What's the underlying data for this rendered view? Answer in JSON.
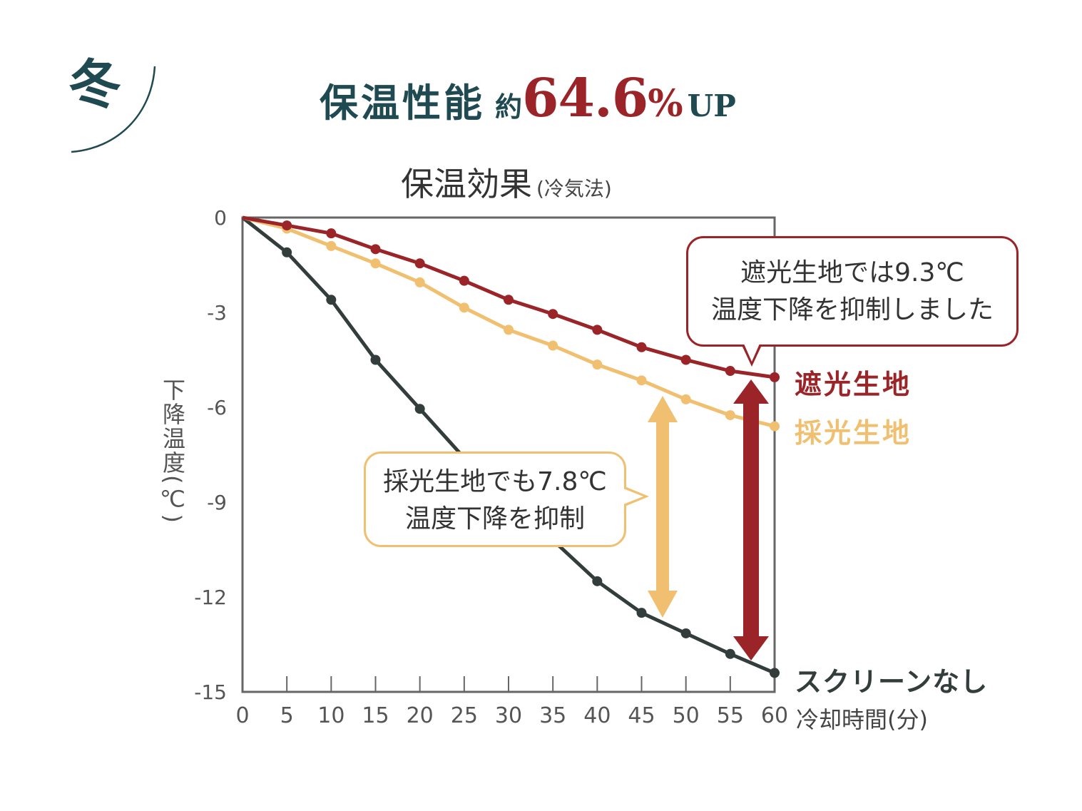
{
  "header": {
    "season": "冬",
    "headline_main": "保温性能",
    "headline_approx": "約",
    "headline_value": "64.6",
    "headline_percent": "%",
    "headline_up": "UP"
  },
  "colors": {
    "dark_teal": "#1f4a52",
    "red": "#9b2428",
    "yellow": "#f0c070",
    "black_series": "#333d3b",
    "axis": "#666666"
  },
  "chart_data": {
    "type": "line",
    "title": "保温効果",
    "subtitle": "(冷気法)",
    "xlabel": "冷却時間(分)",
    "ylabel": "下降温度(℃)",
    "xlim": [
      0,
      60
    ],
    "ylim": [
      -15,
      0
    ],
    "x_ticks": [
      0,
      5,
      10,
      15,
      20,
      25,
      30,
      35,
      40,
      45,
      50,
      55,
      60
    ],
    "y_ticks": [
      0,
      -3,
      -6,
      -9,
      -12,
      -15
    ],
    "x": [
      0,
      5,
      10,
      15,
      20,
      25,
      30,
      35,
      40,
      45,
      50,
      55,
      60
    ],
    "series": [
      {
        "name": "遮光生地",
        "color": "#9b2428",
        "values": [
          0,
          -0.25,
          -0.5,
          -1.0,
          -1.45,
          -2.0,
          -2.6,
          -3.05,
          -3.55,
          -4.1,
          -4.5,
          -4.85,
          -5.05
        ]
      },
      {
        "name": "採光生地",
        "color": "#f0c070",
        "values": [
          0,
          -0.35,
          -0.9,
          -1.45,
          -2.05,
          -2.85,
          -3.55,
          -4.05,
          -4.65,
          -5.15,
          -5.75,
          -6.25,
          -6.6
        ]
      },
      {
        "name": "スクリーンなし",
        "color": "#333d3b",
        "values": [
          0,
          -1.1,
          -2.6,
          -4.5,
          -6.05,
          -7.6,
          -8.9,
          -10.2,
          -11.5,
          -12.5,
          -13.15,
          -13.8,
          -14.4
        ]
      }
    ],
    "annotations": [
      {
        "id": "red",
        "lines": [
          "遮光生地では9.3℃",
          "温度下降を抑制しました"
        ]
      },
      {
        "id": "yellow",
        "lines": [
          "採光生地でも7.8℃",
          "温度下降を抑制"
        ]
      }
    ]
  }
}
